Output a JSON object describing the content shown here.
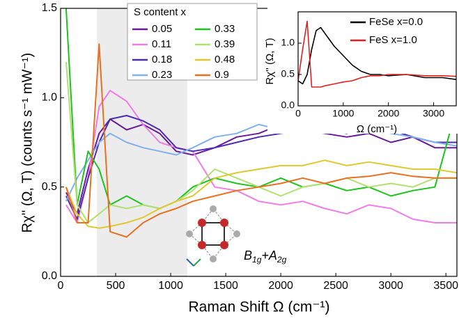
{
  "chart_data": [
    {
      "type": "line",
      "x_label": "Raman Shift Ω (cm⁻¹)",
      "y_label": "Rχ'' (Ω, T) (counts s⁻¹ mW⁻¹)",
      "legend_title": "S content x",
      "annotation": [
        "B",
        "1g",
        "+A",
        "2g"
      ],
      "highlight_xrange": [
        330,
        1150
      ],
      "xlim": [
        0,
        3600
      ],
      "ylim": [
        0,
        1.5
      ],
      "xticks": [
        0,
        500,
        1000,
        1500,
        2000,
        2500,
        3000,
        3500
      ],
      "yticks": [
        {
          "value": 0,
          "label": "0.0"
        },
        {
          "value": 0.5,
          "label": "0.5"
        },
        {
          "value": 1.0,
          "label": "1.0"
        },
        {
          "value": 1.5,
          "label": "1.5"
        }
      ],
      "x": [
        50,
        150,
        250,
        350,
        450,
        600,
        750,
        900,
        1050,
        1200,
        1400,
        1600,
        1800,
        2000,
        2200,
        2400,
        2600,
        2800,
        3000,
        3200,
        3400,
        3600
      ],
      "series": [
        {
          "name": "0.05",
          "color": "#6a1b9a",
          "values": [
            0.47,
            0.35,
            0.6,
            0.8,
            0.88,
            0.82,
            0.85,
            0.8,
            0.7,
            0.68,
            0.72,
            0.78,
            0.8,
            0.85,
            0.82,
            0.8,
            0.78,
            0.8,
            0.75,
            0.78,
            0.72,
            0.72
          ]
        },
        {
          "name": "0.11",
          "color": "#f07ce8",
          "values": [
            0.4,
            0.3,
            0.55,
            0.95,
            1.04,
            0.98,
            0.85,
            0.75,
            0.72,
            0.7,
            0.5,
            0.48,
            0.42,
            0.4,
            0.42,
            0.38,
            0.35,
            0.4,
            0.38,
            0.32,
            0.3,
            0.3
          ]
        },
        {
          "name": "0.18",
          "color": "#4b2bb5",
          "values": [
            0.45,
            0.32,
            0.55,
            0.75,
            0.88,
            0.9,
            0.87,
            0.82,
            0.72,
            0.7,
            0.72,
            0.75,
            0.78,
            0.8,
            0.82,
            0.82,
            0.8,
            0.85,
            0.82,
            0.78,
            0.75,
            0.75
          ]
        },
        {
          "name": "0.23",
          "color": "#80b0f0",
          "values": [
            0.42,
            0.55,
            0.65,
            0.75,
            0.8,
            0.75,
            0.72,
            0.7,
            0.68,
            0.72,
            0.78,
            0.8,
            0.85,
            0.82,
            0.84,
            0.88,
            0.82,
            0.85,
            0.8,
            0.78,
            0.75,
            0.73
          ]
        },
        {
          "name": "0.33",
          "color": "#1cc41c",
          "values": [
            1.5,
            0.4,
            0.7,
            0.6,
            0.4,
            0.45,
            0.4,
            0.38,
            0.42,
            0.5,
            0.55,
            0.52,
            0.5,
            0.55,
            0.5,
            0.52,
            0.48,
            0.5,
            0.45,
            0.48,
            0.5,
            0.95
          ]
        },
        {
          "name": "0.39",
          "color": "#b0e070",
          "values": [
            1.2,
            0.4,
            0.3,
            0.35,
            0.4,
            0.38,
            0.4,
            0.38,
            0.42,
            0.48,
            0.6,
            0.55,
            0.5,
            0.45,
            0.5,
            0.52,
            0.55,
            0.5,
            0.52,
            0.5,
            0.55,
            0.55
          ]
        },
        {
          "name": "0.48",
          "color": "#e0c830",
          "values": [
            0.5,
            0.35,
            0.28,
            0.27,
            0.28,
            0.3,
            0.33,
            0.38,
            0.42,
            0.45,
            0.55,
            0.58,
            0.6,
            0.62,
            0.62,
            0.65,
            0.62,
            0.64,
            0.62,
            0.6,
            0.6,
            0.58
          ]
        },
        {
          "name": "0.9",
          "color": "#e87020",
          "values": [
            0.5,
            0.3,
            0.3,
            1.3,
            0.25,
            0.22,
            0.3,
            0.35,
            0.38,
            0.42,
            0.45,
            0.48,
            0.5,
            0.52,
            0.55,
            0.52,
            0.55,
            0.56,
            0.58,
            0.56,
            0.55,
            0.55
          ]
        }
      ]
    },
    {
      "type": "line",
      "x_label": "Ω (cm⁻¹)",
      "y_label": "Rχ'' (Ω, T)",
      "xlim": [
        0,
        3500
      ],
      "ylim": [
        0,
        1.5
      ],
      "xticks": [
        0,
        1000,
        2000,
        3000
      ],
      "yticks": [
        {
          "value": 0,
          "label": "0.0"
        },
        {
          "value": 0.5,
          "label": "0.5"
        },
        {
          "value": 1.0,
          "label": "1.0"
        }
      ],
      "x": [
        0,
        100,
        200,
        300,
        400,
        500,
        600,
        800,
        1000,
        1200,
        1400,
        1600,
        1800,
        2000,
        2400,
        2800,
        3200,
        3500
      ],
      "series": [
        {
          "name": "FeSe x=0.0",
          "color": "#000000",
          "values": [
            0.4,
            0.35,
            0.5,
            0.9,
            1.2,
            1.25,
            1.15,
            0.95,
            0.8,
            0.65,
            0.55,
            0.5,
            0.5,
            0.48,
            0.5,
            0.45,
            0.45,
            0.42
          ]
        },
        {
          "name": "FeS   x=1.0",
          "color": "#e02020",
          "values": [
            0.4,
            0.9,
            1.35,
            0.3,
            0.3,
            0.3,
            0.32,
            0.35,
            0.38,
            0.4,
            0.45,
            0.48,
            0.48,
            0.5,
            0.5,
            0.48,
            0.48,
            0.47
          ]
        }
      ]
    }
  ]
}
